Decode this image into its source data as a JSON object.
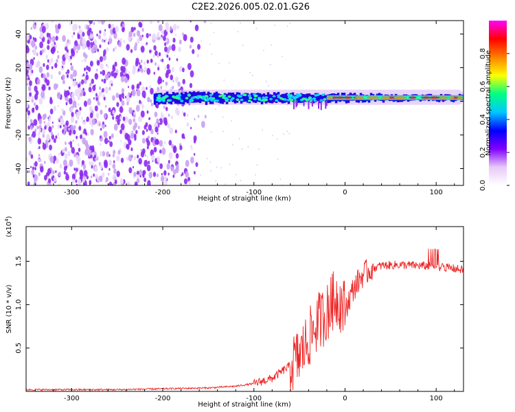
{
  "title": "C2E2.2026.005.02.01.G26",
  "chart_data": [
    {
      "type": "heatmap",
      "xlabel": "Height of straight line (km)",
      "ylabel": "Frequency (Hz)",
      "xlim": [
        -350,
        130
      ],
      "ylim": [
        -50,
        48
      ],
      "x_ticks": [
        -300,
        -200,
        -100,
        0,
        100
      ],
      "x_tick_labels": [
        "-300",
        "-200",
        "-100",
        "0",
        "100"
      ],
      "y_ticks": [
        -40,
        -20,
        0,
        20,
        40
      ],
      "y_tick_labels": [
        "-40",
        "-20",
        "0",
        "20",
        "40"
      ],
      "colorbar": {
        "label": "Normalized spectral amplitude",
        "range": [
          0,
          1
        ],
        "ticks": [
          0.0,
          0.2,
          0.4,
          0.6,
          0.8
        ],
        "tick_labels": [
          "0.0",
          "0.2",
          "0.4",
          "0.6",
          "0.8"
        ],
        "colormap": [
          "#ffffff",
          "#e8c8f8",
          "#8000ff",
          "#0000ff",
          "#00c8ff",
          "#00ff80",
          "#ffff00",
          "#ff8000",
          "#ff0000",
          "#ff00ff"
        ]
      },
      "description_of_features": {
        "noise_region_x": [
          -350,
          -160
        ],
        "signal_band_start_x": -210,
        "signal_band_center_hz": 2,
        "strong_signal_start_x": -20
      }
    },
    {
      "type": "line",
      "xlabel": "Height of straight line (km)",
      "ylabel": "SNR (10 * v/v)",
      "multiplier_label": "(x10",
      "multiplier_exp": "4",
      "multiplier_close": ")",
      "xlim": [
        -350,
        130
      ],
      "ylim": [
        0,
        1.9
      ],
      "x_ticks": [
        -300,
        -200,
        -100,
        0,
        100
      ],
      "x_tick_labels": [
        "-300",
        "-200",
        "-100",
        "0",
        "100"
      ],
      "y_ticks": [
        0.5,
        1.0,
        1.5
      ],
      "y_tick_labels": [
        "0.5",
        "1.0",
        "1.5"
      ],
      "color": "#ee2222",
      "series": [
        {
          "x": [
            -350,
            -300,
            -250,
            -200,
            -150,
            -120,
            -100,
            -80,
            -60,
            -50,
            -40,
            -30,
            -20,
            -15,
            -10,
            0,
            10,
            20,
            30,
            40,
            60,
            80,
            100,
            110,
            130
          ],
          "values": [
            0.02,
            0.02,
            0.02,
            0.03,
            0.04,
            0.06,
            0.09,
            0.15,
            0.3,
            0.4,
            0.6,
            0.8,
            0.9,
            1.0,
            1.1,
            0.95,
            1.2,
            1.35,
            1.42,
            1.45,
            1.46,
            1.45,
            1.44,
            1.43,
            1.4
          ]
        }
      ]
    }
  ]
}
